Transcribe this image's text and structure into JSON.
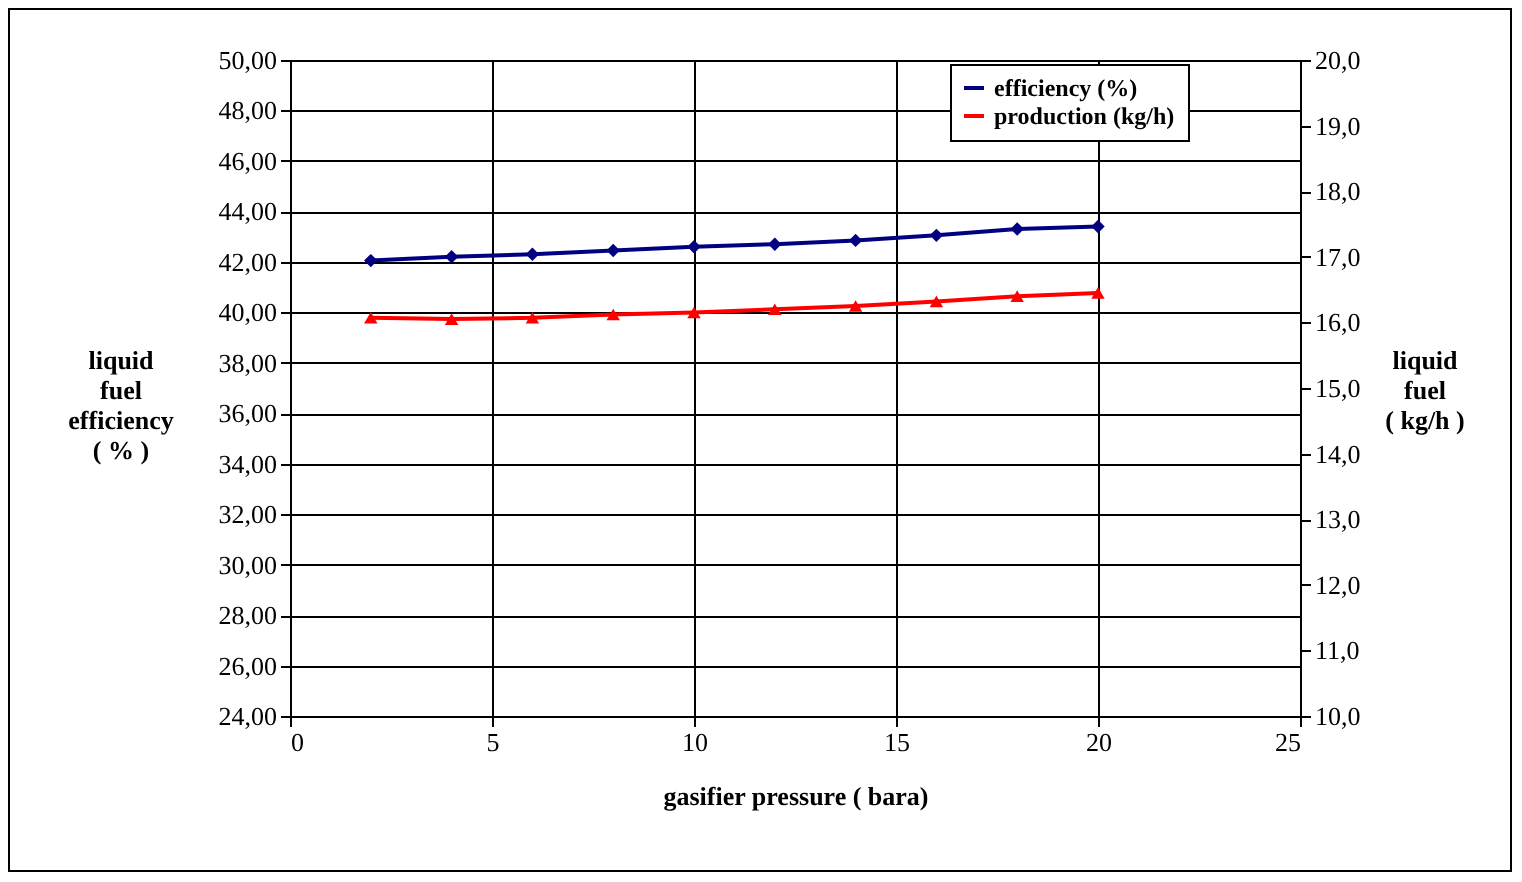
{
  "chart_data": {
    "type": "line",
    "xlabel": "gasifier pressure ( bara)",
    "ylabel": "liquid fuel efficiency ( % )",
    "y2label": "liquid fuel ( kg/h )",
    "x": [
      2,
      4,
      6,
      8,
      10,
      12,
      14,
      16,
      18,
      20
    ],
    "series": [
      {
        "name": "efficiency (%)",
        "color": "#000080",
        "marker": "diamond",
        "values": [
          42.05,
          42.2,
          42.3,
          42.45,
          42.6,
          42.7,
          42.85,
          43.05,
          43.3,
          43.4
        ]
      },
      {
        "name": "production (kg/h)",
        "color": "#ff0000",
        "marker": "triangle",
        "axis": "y2",
        "values": [
          16.07,
          16.05,
          16.07,
          16.12,
          16.15,
          16.2,
          16.25,
          16.32,
          16.4,
          16.45
        ]
      }
    ],
    "xlim": [
      0,
      25
    ],
    "xticks": [
      0,
      5,
      10,
      15,
      20,
      25
    ],
    "ylim": [
      24,
      50
    ],
    "yticks": [
      {
        "value": 24,
        "label": "24,00"
      },
      {
        "value": 26,
        "label": "26,00"
      },
      {
        "value": 28,
        "label": "28,00"
      },
      {
        "value": 30,
        "label": "30,00"
      },
      {
        "value": 32,
        "label": "32,00"
      },
      {
        "value": 34,
        "label": "34,00"
      },
      {
        "value": 36,
        "label": "36,00"
      },
      {
        "value": 38,
        "label": "38,00"
      },
      {
        "value": 40,
        "label": "40,00"
      },
      {
        "value": 42,
        "label": "42,00"
      },
      {
        "value": 44,
        "label": "44,00"
      },
      {
        "value": 46,
        "label": "46,00"
      },
      {
        "value": 48,
        "label": "48,00"
      },
      {
        "value": 50,
        "label": "50,00"
      }
    ],
    "y2lim": [
      10,
      20
    ],
    "y2ticks": [
      {
        "value": 10,
        "label": "10,0"
      },
      {
        "value": 11,
        "label": "11,0"
      },
      {
        "value": 12,
        "label": "12,0"
      },
      {
        "value": 13,
        "label": "13,0"
      },
      {
        "value": 14,
        "label": "14,0"
      },
      {
        "value": 15,
        "label": "15,0"
      },
      {
        "value": 16,
        "label": "16,0"
      },
      {
        "value": 17,
        "label": "17,0"
      },
      {
        "value": 18,
        "label": "18,0"
      },
      {
        "value": 19,
        "label": "19,0"
      },
      {
        "value": 20,
        "label": "20,0"
      }
    ],
    "grid": true,
    "legend": "top right",
    "line_style": "solid"
  }
}
